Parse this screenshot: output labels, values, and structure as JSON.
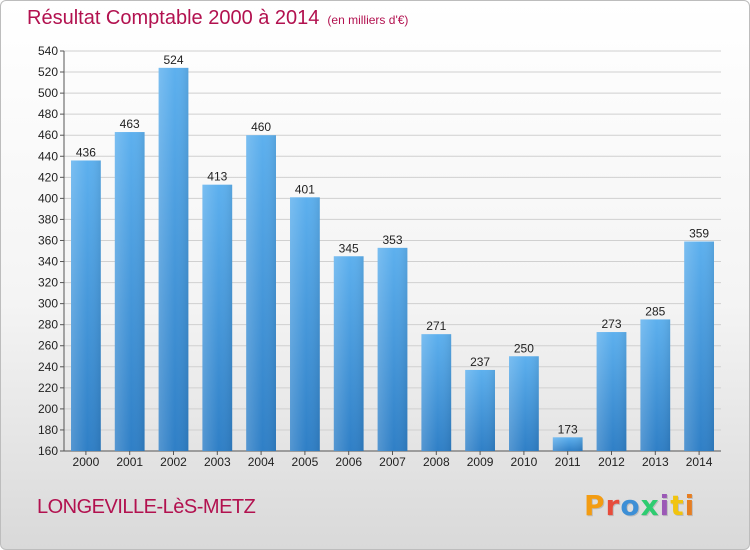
{
  "chart_data": {
    "type": "bar",
    "title": "Résultat Comptable 2000 à 2014",
    "subtitle": "(en milliers d'€)",
    "categories": [
      "2000",
      "2001",
      "2002",
      "2003",
      "2004",
      "2005",
      "2006",
      "2007",
      "2008",
      "2009",
      "2010",
      "2011",
      "2012",
      "2013",
      "2014"
    ],
    "values": [
      436,
      463,
      524,
      413,
      460,
      401,
      345,
      353,
      271,
      237,
      250,
      173,
      273,
      285,
      359
    ],
    "ylim": [
      160,
      540
    ],
    "yticks": [
      160,
      180,
      200,
      220,
      240,
      260,
      280,
      300,
      320,
      340,
      360,
      380,
      400,
      420,
      440,
      460,
      480,
      500,
      520,
      540
    ],
    "grid": true,
    "bar_color": "#4a9fe0"
  },
  "footer": {
    "city": "LONGEVILLE-LèS-METZ",
    "logo": [
      "P",
      "r",
      "o",
      "x",
      "i",
      "t",
      "i"
    ],
    "logo_colors": [
      "#f39c12",
      "#e74c3c",
      "#3d8fd6",
      "#2ecc71",
      "#9b59b6",
      "#f1c40f",
      "#e67e22"
    ]
  }
}
